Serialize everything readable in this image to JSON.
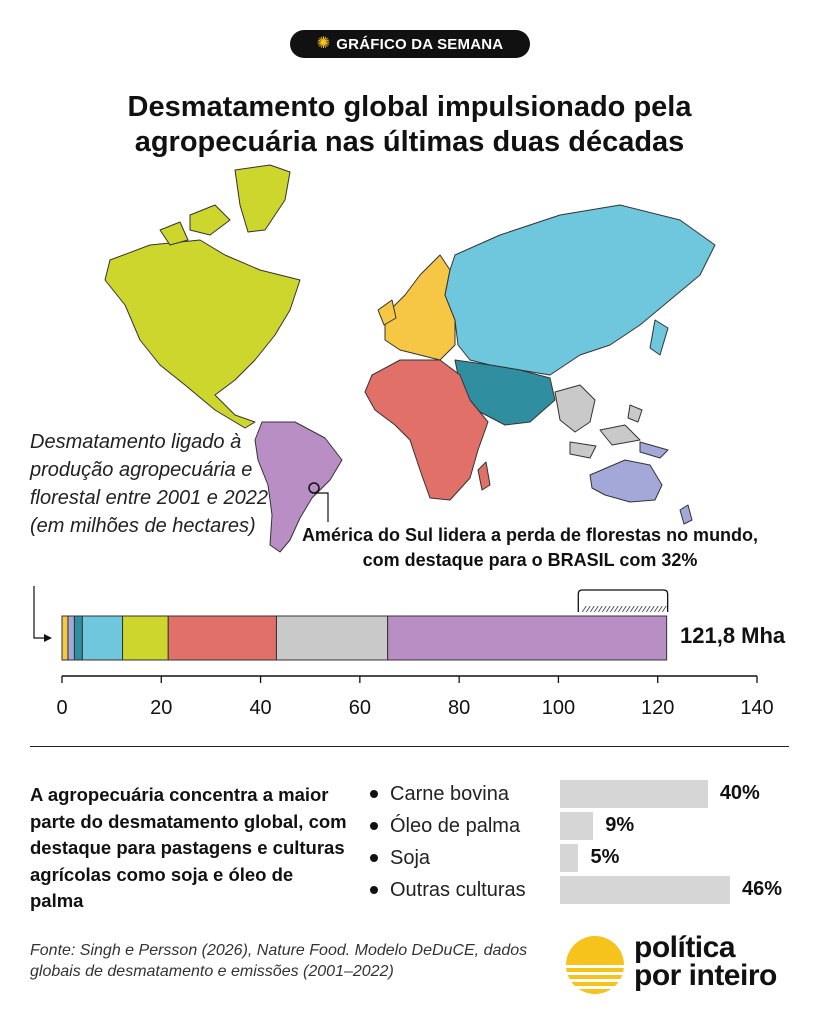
{
  "badge": {
    "label": "GRÁFICO DA SEMANA",
    "icon": "sun-icon"
  },
  "title": "Desmatamento global impulsionado pela agropecuária nas últimas duas décadas",
  "legend_note": "Desmatamento ligado à produção agropecuária e florestal entre 2001 e 2022 (em milhões de hectares)",
  "callout": "América do Sul lidera a perda de florestas no mundo, com destaque para o BRASIL com 32%",
  "total_label": "121,8 Mha",
  "colors": {
    "north_america": "#cdd62c",
    "south_america": "#b98ec4",
    "europe": "#f6c744",
    "africa": "#e07068",
    "middle_east": "#2f8fa0",
    "central_asia": "#6ec7dc",
    "southeast_asia": "#c9c9c9",
    "oceania": "#a3a8d8",
    "brand_yellow": "#f6c21c"
  },
  "chart_data": {
    "type": "bar",
    "orientation": "horizontal-stacked",
    "xlim": [
      0,
      140
    ],
    "xticks": [
      "0",
      "20",
      "40",
      "60",
      "80",
      "100",
      "120",
      "140"
    ],
    "total": 121.8,
    "segments": [
      {
        "region": "europe",
        "value": 1.2
      },
      {
        "region": "oceania",
        "value": 1.3
      },
      {
        "region": "middle_east",
        "value": 1.6
      },
      {
        "region": "central_asia",
        "value": 8.1
      },
      {
        "region": "north_america",
        "value": 9.2
      },
      {
        "region": "africa",
        "value": 21.8
      },
      {
        "region": "southeast_asia",
        "value": 22.4
      },
      {
        "region": "south_america",
        "value": 56.2
      }
    ],
    "brazil_bracket": [
      104,
      122
    ]
  },
  "sector_text": "A agropecuária concentra a maior parte do desmatamento global, com destaque para pastagens e culturas agrícolas como soja e óleo de palma",
  "shares": [
    {
      "label": "Carne bovina",
      "value": 40,
      "pct": "40%"
    },
    {
      "label": "Óleo de palma",
      "value": 9,
      "pct": "9%"
    },
    {
      "label": "Soja",
      "value": 5,
      "pct": "5%"
    },
    {
      "label": "Outras culturas",
      "value": 46,
      "pct": "46%"
    }
  ],
  "source": "Fonte: Singh e Persson (2026), Nature Food. Modelo DeDuCE, dados globais de desmatamento e emissões (2001–2022)",
  "logo": {
    "line1": "política",
    "line2": "por inteiro"
  }
}
